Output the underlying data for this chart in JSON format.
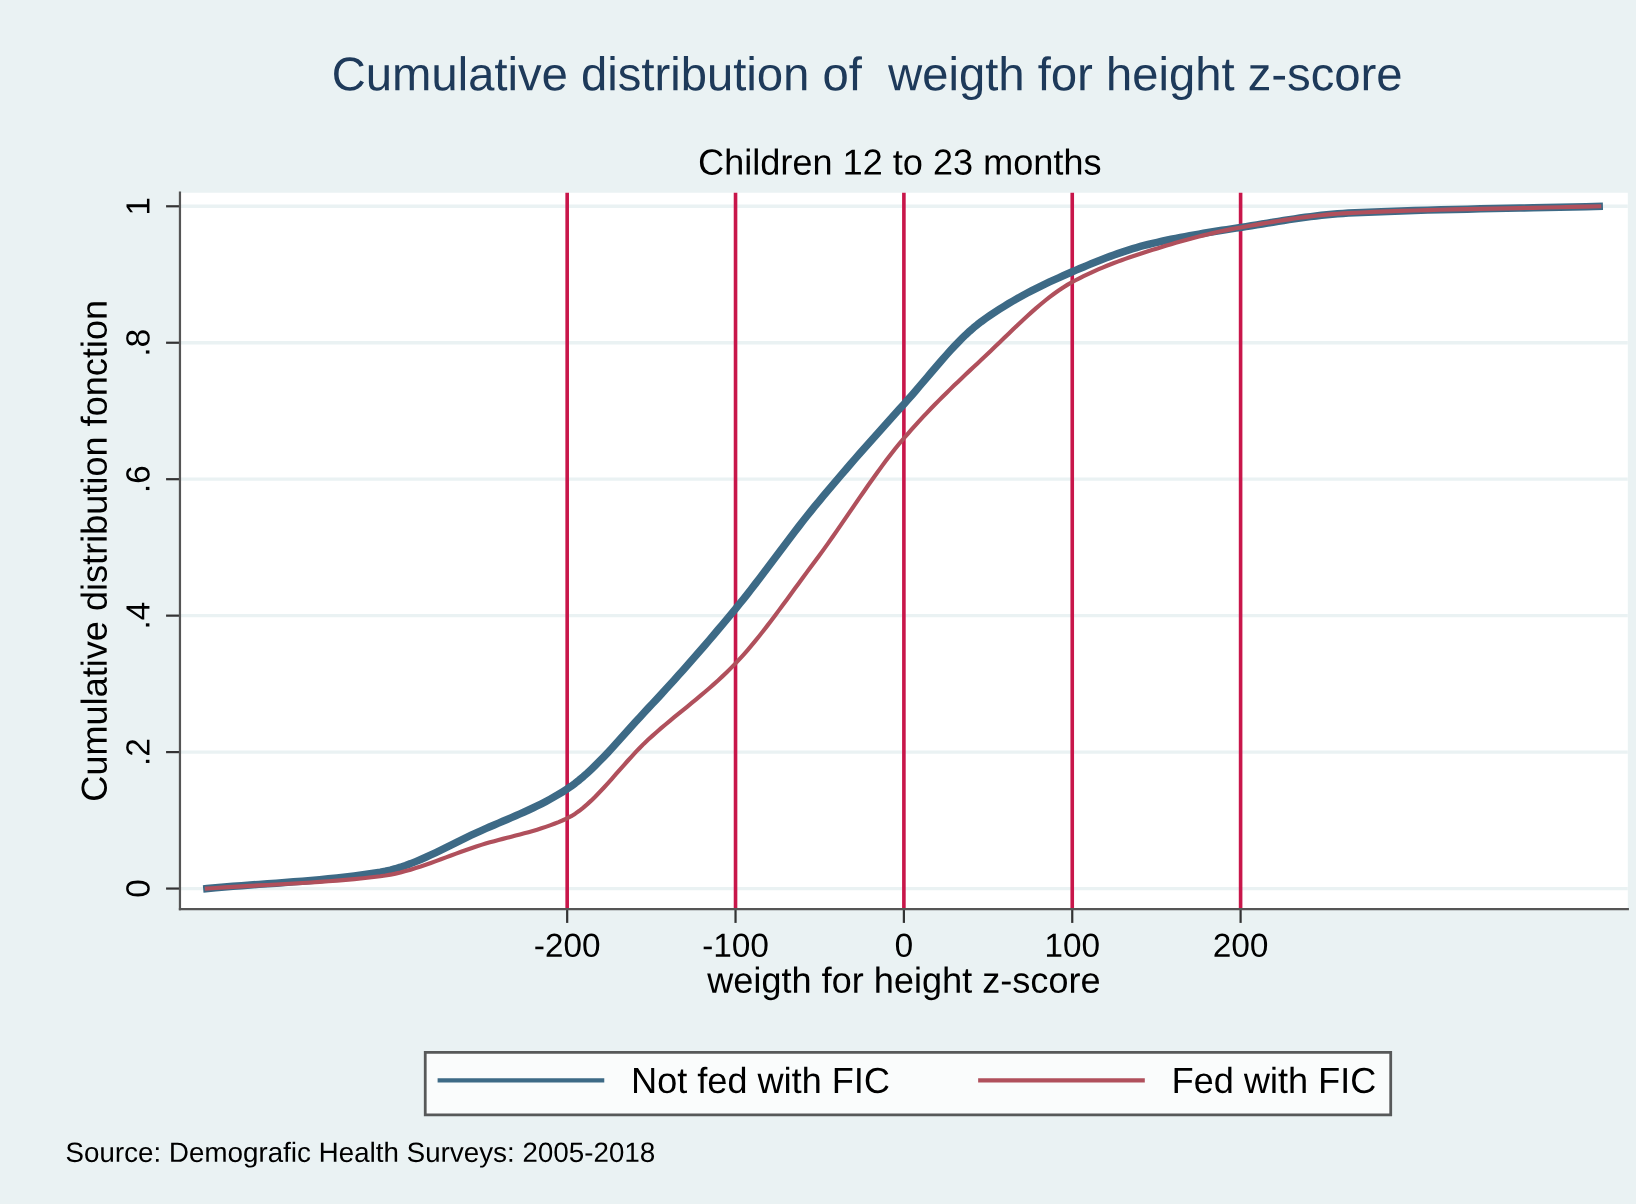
{
  "chart_data": {
    "type": "line",
    "title": "Cumulative distribution of  weigth for height z-score",
    "subtitle": "Children 12 to 23 months",
    "xlabel": "weigth for height z-score",
    "ylabel": "Cumulative distribution fonction",
    "annotations": [
      "Source: Demografic Health Surveys: 2005-2018"
    ],
    "x": [
      -414,
      -311,
      -251,
      -200,
      -152,
      -100,
      -53,
      0,
      46,
      100,
      145,
      200,
      264,
      413
    ],
    "series": [
      {
        "name": "Not fed with FIC",
        "color": "#3d6a86",
        "values": [
          0.0,
          0.024,
          0.085,
          0.146,
          0.264,
          0.41,
          0.56,
          0.71,
          0.831,
          0.904,
          0.944,
          0.969,
          0.99,
          1.0
        ]
      },
      {
        "name": "Fed with FIC",
        "color": "#b0505c",
        "values": [
          0.0,
          0.018,
          0.064,
          0.103,
          0.218,
          0.33,
          0.479,
          0.66,
          0.775,
          0.889,
          0.934,
          0.969,
          0.99,
          1.0
        ]
      }
    ],
    "xlim": [
      -430,
      430
    ],
    "xticks": [
      -200,
      -100,
      0,
      100,
      200
    ],
    "ylim": [
      -0.03,
      1.02
    ],
    "yticks": [
      0,
      {
        "value": 0.2,
        "label": ".2"
      },
      {
        "value": 0.4,
        "label": ".4"
      },
      {
        "value": 0.6,
        "label": ".6"
      },
      {
        "value": 0.8,
        "label": ".8"
      },
      1
    ],
    "ref_lines": [
      {
        "axis": "x",
        "value": -200,
        "color": "#c8164a"
      },
      {
        "axis": "x",
        "value": -100,
        "color": "#c8164a"
      },
      {
        "axis": "x",
        "value": 0,
        "color": "#c8164a"
      },
      {
        "axis": "x",
        "value": 100,
        "color": "#c8164a"
      },
      {
        "axis": "x",
        "value": 200,
        "color": "#c8164a"
      }
    ],
    "grid": "y",
    "legend": "bottom",
    "marker": "none",
    "line_style": "solid"
  }
}
